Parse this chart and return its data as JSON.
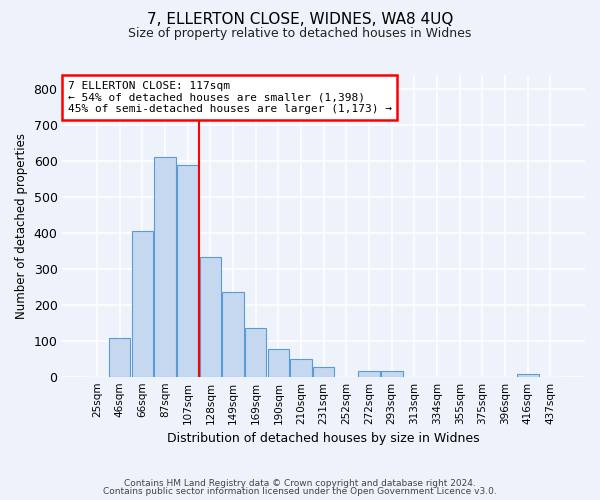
{
  "title": "7, ELLERTON CLOSE, WIDNES, WA8 4UQ",
  "subtitle": "Size of property relative to detached houses in Widnes",
  "xlabel": "Distribution of detached houses by size in Widnes",
  "ylabel": "Number of detached properties",
  "bar_labels": [
    "25sqm",
    "46sqm",
    "66sqm",
    "87sqm",
    "107sqm",
    "128sqm",
    "149sqm",
    "169sqm",
    "190sqm",
    "210sqm",
    "231sqm",
    "252sqm",
    "272sqm",
    "293sqm",
    "313sqm",
    "334sqm",
    "355sqm",
    "375sqm",
    "396sqm",
    "416sqm",
    "437sqm"
  ],
  "bar_values": [
    0,
    107,
    405,
    612,
    590,
    332,
    237,
    135,
    77,
    50,
    26,
    0,
    15,
    15,
    0,
    0,
    0,
    0,
    0,
    7,
    0
  ],
  "bar_color": "#c5d8f0",
  "bar_edgecolor": "#5b9bd5",
  "vline_color": "red",
  "annotation_title": "7 ELLERTON CLOSE: 117sqm",
  "annotation_line1": "← 54% of detached houses are smaller (1,398)",
  "annotation_line2": "45% of semi-detached houses are larger (1,173) →",
  "annotation_box_color": "white",
  "annotation_box_edgecolor": "red",
  "ylim": [
    0,
    840
  ],
  "yticks": [
    0,
    100,
    200,
    300,
    400,
    500,
    600,
    700,
    800
  ],
  "footer1": "Contains HM Land Registry data © Crown copyright and database right 2024.",
  "footer2": "Contains public sector information licensed under the Open Government Licence v3.0.",
  "bg_color": "#eef2fa",
  "title_fontsize": 11,
  "subtitle_fontsize": 9
}
